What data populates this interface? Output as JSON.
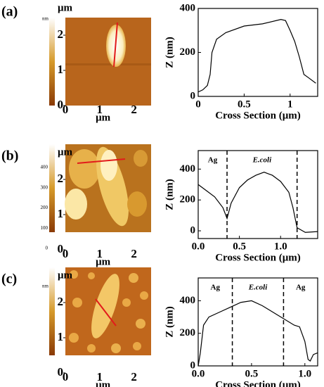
{
  "images": [
    {
      "label": "(a)",
      "unit": "μm",
      "cbar_unit": "nm",
      "extent": [
        0,
        2.5
      ],
      "xticks": [
        0,
        1,
        2
      ],
      "yticks": [
        0,
        1,
        2
      ]
    },
    {
      "label": "(b)",
      "unit": "μm",
      "extent": [
        0,
        2.5
      ],
      "xticks": [
        0,
        1,
        2
      ],
      "yticks": [
        0,
        1,
        2
      ],
      "cbar_ticks": [
        0,
        100,
        200,
        300,
        400
      ]
    },
    {
      "label": "(c)",
      "unit": "μm",
      "cbar_unit": "nm",
      "extent": [
        0,
        2.5
      ],
      "xticks": [
        0,
        1,
        2
      ],
      "yticks": [
        0,
        1,
        2
      ]
    }
  ],
  "chart_data": [
    {
      "type": "line",
      "xlabel": "Cross Section (μm)",
      "ylabel": "Z (nm)",
      "xlim": [
        0,
        1.3
      ],
      "ylim": [
        0,
        400
      ],
      "xticks": [
        0,
        0.5,
        1
      ],
      "yticks": [
        0,
        200,
        400
      ],
      "series": [
        {
          "color": "#000000",
          "x": [
            0,
            0.05,
            0.1,
            0.13,
            0.15,
            0.2,
            0.3,
            0.5,
            0.7,
            0.9,
            0.95,
            1.0,
            1.05,
            1.1,
            1.15,
            1.2,
            1.28
          ],
          "values": [
            20,
            30,
            50,
            100,
            200,
            260,
            290,
            320,
            330,
            350,
            345,
            300,
            250,
            180,
            100,
            85,
            60
          ]
        }
      ]
    },
    {
      "type": "line",
      "xlabel": "Cross Section (μm)",
      "ylabel": "Z (nm)",
      "xlim": [
        0,
        1.45
      ],
      "ylim": [
        -50,
        520
      ],
      "xticks": [
        {
          "value": 0,
          "label": "0.0"
        },
        0.5,
        {
          "value": 1,
          "label": "1.0"
        }
      ],
      "yticks": [
        0,
        200,
        400
      ],
      "dividers": [
        0.35,
        1.2
      ],
      "annotations": [
        "Ag",
        "E.coli"
      ],
      "series": [
        {
          "color": "#000000",
          "x": [
            0,
            0.1,
            0.2,
            0.3,
            0.35,
            0.4,
            0.5,
            0.6,
            0.7,
            0.8,
            0.85,
            0.9,
            1.0,
            1.1,
            1.15,
            1.2,
            1.3,
            1.45
          ],
          "values": [
            300,
            260,
            220,
            150,
            80,
            180,
            280,
            330,
            360,
            380,
            370,
            360,
            320,
            250,
            150,
            20,
            -10,
            -5
          ]
        }
      ]
    },
    {
      "type": "line",
      "xlabel": "Cross Section (μm)",
      "ylabel": "Z (nm)",
      "xlim": [
        0,
        1.12
      ],
      "ylim": [
        0,
        540
      ],
      "xticks": [
        {
          "value": 0,
          "label": "0.0"
        },
        0.5,
        {
          "value": 1,
          "label": "1.0"
        }
      ],
      "yticks": [
        0,
        200,
        400
      ],
      "dividers": [
        0.32,
        0.8
      ],
      "annotations": [
        "Ag",
        "E.coli",
        "Ag"
      ],
      "series": [
        {
          "color": "#000000",
          "x": [
            0,
            0.02,
            0.05,
            0.1,
            0.2,
            0.3,
            0.4,
            0.5,
            0.6,
            0.7,
            0.8,
            0.9,
            0.95,
            1.0,
            1.03,
            1.05,
            1.08,
            1.12
          ],
          "values": [
            0,
            80,
            250,
            300,
            330,
            360,
            390,
            400,
            370,
            330,
            290,
            250,
            240,
            150,
            40,
            30,
            70,
            80
          ]
        }
      ]
    }
  ]
}
